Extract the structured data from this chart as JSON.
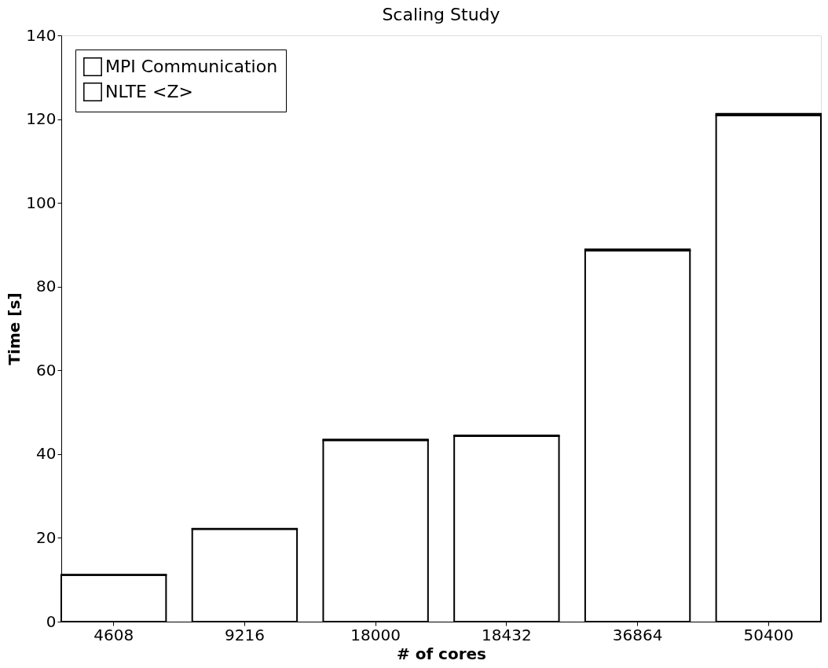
{
  "chart_data": {
    "type": "bar",
    "title": "Scaling Study",
    "xlabel": "# of cores",
    "ylabel": "Time [s]",
    "categories": [
      "4608",
      "9216",
      "18000",
      "18432",
      "36864",
      "50400"
    ],
    "stacked": true,
    "series": [
      {
        "name": "NLTE <Z>",
        "color": "#ffffff",
        "values": [
          11.1,
          22.1,
          43.3,
          44.3,
          88.6,
          120.9
        ]
      },
      {
        "name": "MPI Communication",
        "color": "#ffffff",
        "values": [
          0.1,
          0.1,
          0.2,
          0.2,
          0.3,
          0.4
        ]
      }
    ],
    "ylim": [
      0,
      140
    ],
    "yticks": [
      0,
      20,
      40,
      60,
      80,
      100,
      120,
      140
    ],
    "grid": false,
    "legend": "top left"
  }
}
